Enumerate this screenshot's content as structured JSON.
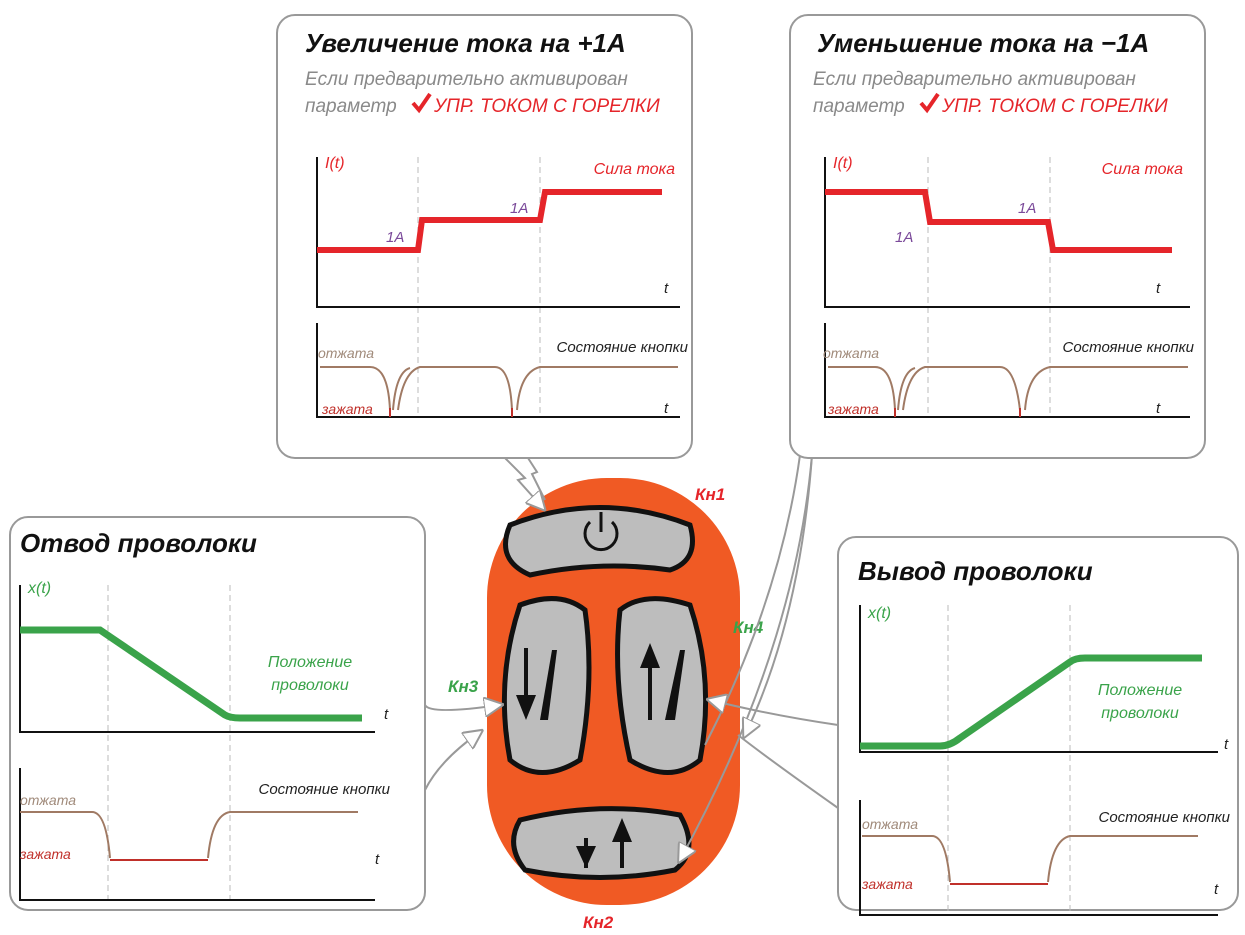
{
  "buttons": {
    "b1": "Кн1",
    "b2": "Кн2",
    "b3": "Кн3",
    "b4": "Кн4"
  },
  "current_up": {
    "title": "Увеличение тока на +1А",
    "note_line1": "Если предварительно активирован",
    "note_line2": "параметр",
    "param": "УПР. ТОКОМ С ГОРЕЛКИ",
    "axis_y": "I(t)",
    "axis_t": "t",
    "curve_label": "Сила тока",
    "step1": "1A",
    "step2": "1A",
    "button_state": "Состояние кнопки",
    "released": "отжата",
    "pressed": "зажата"
  },
  "current_down": {
    "title": "Уменьшение тока на −1А",
    "note_line1": "Если предварительно активирован",
    "note_line2": "параметр",
    "param": "УПР. ТОКОМ С ГОРЕЛКИ",
    "axis_y": "I(t)",
    "axis_t": "t",
    "curve_label": "Сила тока",
    "step1": "1A",
    "step2": "1A",
    "button_state": "Состояние кнопки",
    "released": "отжата",
    "pressed": "зажата"
  },
  "wire_retract": {
    "title": "Отвод проволоки",
    "axis_y": "x(t)",
    "axis_t": "t",
    "curve_label_line1": "Положение",
    "curve_label_line2": "проволоки",
    "button_state": "Состояние кнопки",
    "released": "отжата",
    "pressed": "зажата"
  },
  "wire_feed": {
    "title": "Вывод проволоки",
    "axis_y": "x(t)",
    "axis_t": "t",
    "curve_label_line1": "Положение",
    "curve_label_line2": "проволоки",
    "button_state": "Состояние кнопки",
    "released": "отжата",
    "pressed": "зажата"
  }
}
